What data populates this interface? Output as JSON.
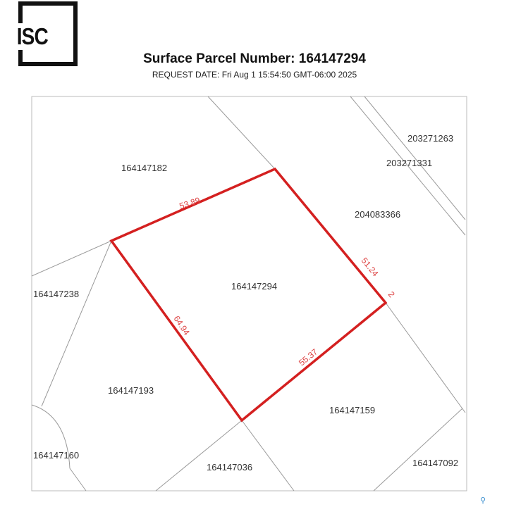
{
  "logo": {
    "text": "ISC"
  },
  "header": {
    "title": "Surface Parcel Number: 164147294",
    "request_date": "REQUEST DATE: Fri Aug 1 15:54:50 GMT-06:00 2025"
  },
  "colors": {
    "subject_parcel": "#d42020",
    "boundary": "#9a9a9a",
    "dimension_text": "#d44444",
    "pin": "#3b8fd0"
  },
  "map": {
    "subject_parcel": "164147294",
    "parcels": {
      "p182": "164147182",
      "p263": "203271263",
      "p331": "203271331",
      "p366": "204083366",
      "p238": "164147238",
      "p294": "164147294",
      "p193": "164147193",
      "p159": "164147159",
      "p160": "164147160",
      "p036": "164147036",
      "p092": "164147092"
    },
    "dimensions": {
      "north": "53.89",
      "east": "51.24",
      "corner": "2",
      "west": "64.94",
      "south": "55.37"
    }
  },
  "icons": {
    "pin": "map-pin-icon"
  }
}
